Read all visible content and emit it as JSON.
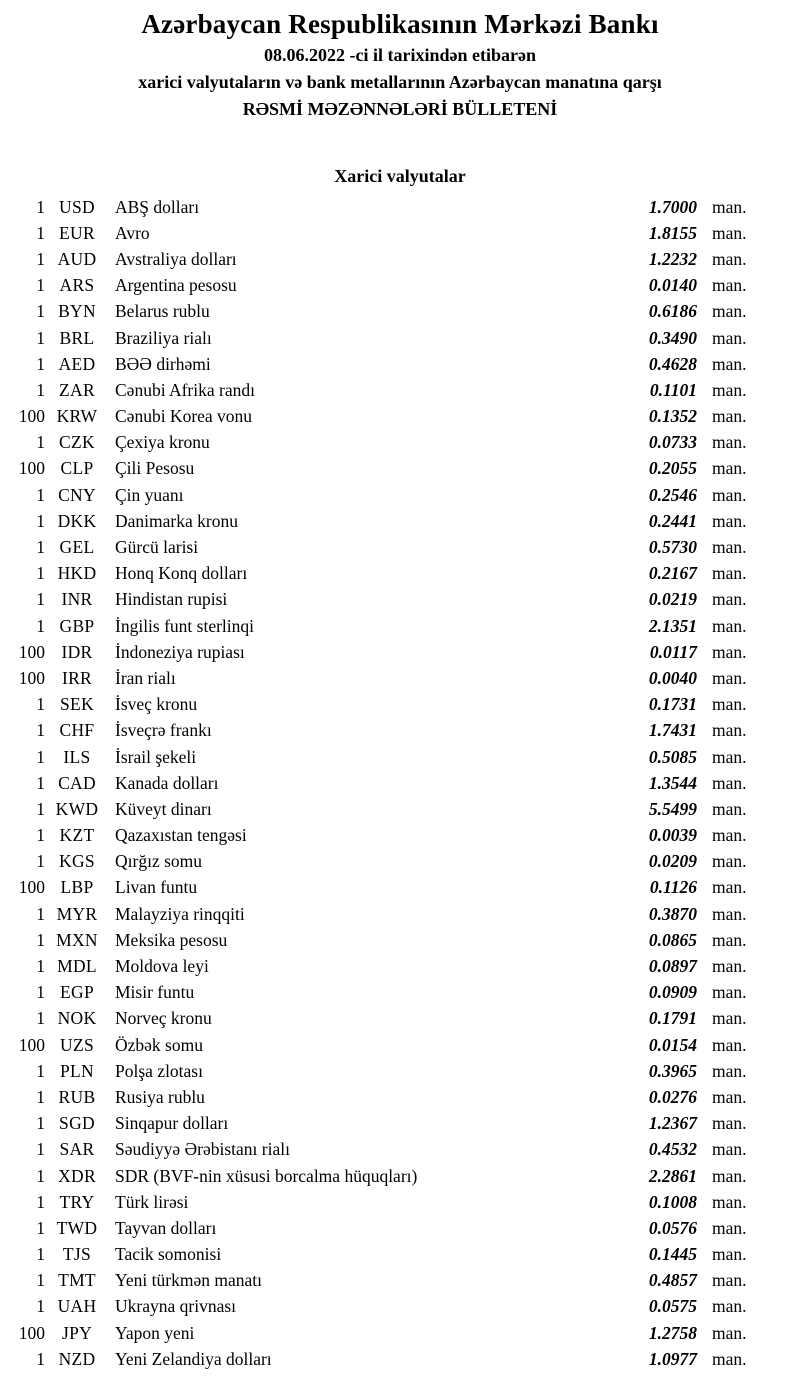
{
  "header": {
    "title": "Azərbaycan Respublikasının Mərkəzi Bankı",
    "date_line": "08.06.2022 -ci il tarixindən etibarən",
    "subject_line": "xarici valyutaların və bank metallarının Azərbaycan manatına qarşı",
    "bulletin_line": "RƏSMİ MƏZƏNNƏLƏRİ BÜLLETENİ"
  },
  "section": {
    "title": "Xarici valyutalar"
  },
  "rates": [
    {
      "amount": "1",
      "code": "USD",
      "name": "ABŞ dolları",
      "rate": "1.7000",
      "unit": "man."
    },
    {
      "amount": "1",
      "code": "EUR",
      "name": "Avro",
      "rate": "1.8155",
      "unit": "man."
    },
    {
      "amount": "1",
      "code": "AUD",
      "name": "Avstraliya dolları",
      "rate": "1.2232",
      "unit": "man."
    },
    {
      "amount": "1",
      "code": "ARS",
      "name": "Argentina pesosu",
      "rate": "0.0140",
      "unit": "man."
    },
    {
      "amount": "1",
      "code": "BYN",
      "name": "Belarus rublu",
      "rate": "0.6186",
      "unit": "man."
    },
    {
      "amount": "1",
      "code": "BRL",
      "name": "Braziliya rialı",
      "rate": "0.3490",
      "unit": "man."
    },
    {
      "amount": "1",
      "code": "AED",
      "name": "BƏƏ dirhəmi",
      "rate": "0.4628",
      "unit": "man."
    },
    {
      "amount": "1",
      "code": "ZAR",
      "name": "Cənubi Afrika randı",
      "rate": "0.1101",
      "unit": "man."
    },
    {
      "amount": "100",
      "code": "KRW",
      "name": "Cənubi Korea vonu",
      "rate": "0.1352",
      "unit": "man."
    },
    {
      "amount": "1",
      "code": "CZK",
      "name": "Çexiya kronu",
      "rate": "0.0733",
      "unit": "man."
    },
    {
      "amount": "100",
      "code": "CLP",
      "name": "Çili Pesosu",
      "rate": "0.2055",
      "unit": "man."
    },
    {
      "amount": "1",
      "code": "CNY",
      "name": "Çin yuanı",
      "rate": "0.2546",
      "unit": "man."
    },
    {
      "amount": "1",
      "code": "DKK",
      "name": "Danimarka kronu",
      "rate": "0.2441",
      "unit": "man."
    },
    {
      "amount": "1",
      "code": "GEL",
      "name": "Gürcü larisi",
      "rate": "0.5730",
      "unit": "man."
    },
    {
      "amount": "1",
      "code": "HKD",
      "name": "Honq Konq dolları",
      "rate": "0.2167",
      "unit": "man."
    },
    {
      "amount": "1",
      "code": "INR",
      "name": "Hindistan rupisi",
      "rate": "0.0219",
      "unit": "man."
    },
    {
      "amount": "1",
      "code": "GBP",
      "name": "İngilis funt sterlinqi",
      "rate": "2.1351",
      "unit": "man."
    },
    {
      "amount": "100",
      "code": "IDR",
      "name": "İndoneziya rupiası",
      "rate": "0.0117",
      "unit": "man."
    },
    {
      "amount": "100",
      "code": "IRR",
      "name": "İran rialı",
      "rate": "0.0040",
      "unit": "man."
    },
    {
      "amount": "1",
      "code": "SEK",
      "name": "İsveç kronu",
      "rate": "0.1731",
      "unit": "man."
    },
    {
      "amount": "1",
      "code": "CHF",
      "name": "İsveçrə frankı",
      "rate": "1.7431",
      "unit": "man."
    },
    {
      "amount": "1",
      "code": "ILS",
      "name": "İsrail şekeli",
      "rate": "0.5085",
      "unit": "man."
    },
    {
      "amount": "1",
      "code": "CAD",
      "name": "Kanada dolları",
      "rate": "1.3544",
      "unit": "man."
    },
    {
      "amount": "1",
      "code": "KWD",
      "name": "Küveyt dinarı",
      "rate": "5.5499",
      "unit": "man."
    },
    {
      "amount": "1",
      "code": "KZT",
      "name": "Qazaxıstan tengəsi",
      "rate": "0.0039",
      "unit": "man."
    },
    {
      "amount": "1",
      "code": "KGS",
      "name": "Qırğız somu",
      "rate": "0.0209",
      "unit": "man."
    },
    {
      "amount": "100",
      "code": "LBP",
      "name": "Livan funtu",
      "rate": "0.1126",
      "unit": "man."
    },
    {
      "amount": "1",
      "code": "MYR",
      "name": "Malayziya rinqqiti",
      "rate": "0.3870",
      "unit": "man."
    },
    {
      "amount": "1",
      "code": "MXN",
      "name": "Meksika pesosu",
      "rate": "0.0865",
      "unit": "man."
    },
    {
      "amount": "1",
      "code": "MDL",
      "name": "Moldova leyi",
      "rate": "0.0897",
      "unit": "man."
    },
    {
      "amount": "1",
      "code": "EGP",
      "name": "Misir funtu",
      "rate": "0.0909",
      "unit": "man."
    },
    {
      "amount": "1",
      "code": "NOK",
      "name": "Norveç kronu",
      "rate": "0.1791",
      "unit": "man."
    },
    {
      "amount": "100",
      "code": "UZS",
      "name": "Özbək somu",
      "rate": "0.0154",
      "unit": "man."
    },
    {
      "amount": "1",
      "code": "PLN",
      "name": "Polşa zlotası",
      "rate": "0.3965",
      "unit": "man."
    },
    {
      "amount": "1",
      "code": "RUB",
      "name": "Rusiya rublu",
      "rate": "0.0276",
      "unit": "man."
    },
    {
      "amount": "1",
      "code": "SGD",
      "name": "Sinqapur dolları",
      "rate": "1.2367",
      "unit": "man."
    },
    {
      "amount": "1",
      "code": "SAR",
      "name": "Səudiyyə Ərəbistanı rialı",
      "rate": "0.4532",
      "unit": "man."
    },
    {
      "amount": "1",
      "code": "XDR",
      "name": "SDR (BVF-nin xüsusi borcalma hüquqları)",
      "rate": "2.2861",
      "unit": "man."
    },
    {
      "amount": "1",
      "code": "TRY",
      "name": "Türk lirəsi",
      "rate": "0.1008",
      "unit": "man."
    },
    {
      "amount": "1",
      "code": "TWD",
      "name": "Tayvan dolları",
      "rate": "0.0576",
      "unit": "man."
    },
    {
      "amount": "1",
      "code": "TJS",
      "name": "Tacik somonisi",
      "rate": "0.1445",
      "unit": "man."
    },
    {
      "amount": "1",
      "code": "TMT",
      "name": "Yeni türkmən manatı",
      "rate": "0.4857",
      "unit": "man."
    },
    {
      "amount": "1",
      "code": "UAH",
      "name": "Ukrayna qrivnası",
      "rate": "0.0575",
      "unit": "man."
    },
    {
      "amount": "100",
      "code": "JPY",
      "name": "Yapon yeni",
      "rate": "1.2758",
      "unit": "man."
    },
    {
      "amount": "1",
      "code": "NZD",
      "name": "Yeni Zelandiya dolları",
      "rate": "1.0977",
      "unit": "man."
    }
  ]
}
